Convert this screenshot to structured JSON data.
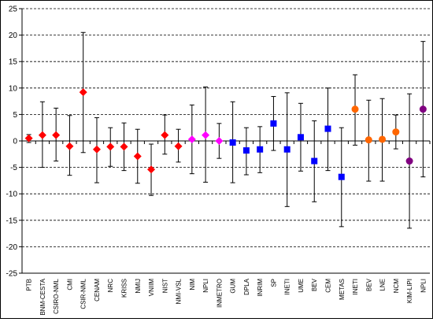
{
  "chart_data": {
    "type": "scatter",
    "categories": [
      "PTB",
      "BNM-CESTA",
      "CSIRO-NML",
      "CMI",
      "CSIR-NML",
      "CENAM",
      "NRC",
      "KRISS",
      "NMIJ",
      "VNIIM",
      "NIST",
      "NMI-VSL",
      "NIM",
      "NPLI",
      "INMETRO",
      "GUM",
      "DPLA",
      "INRIM",
      "SP",
      "INETI",
      "UME",
      "BEV",
      "CEM",
      "METAS",
      "INETI",
      "BEV",
      "LNE",
      "NCM",
      "KIM-LIPI",
      "NPLI"
    ],
    "values": [
      0.5,
      1.1,
      1.1,
      -1.0,
      9.2,
      -1.6,
      -1.1,
      -1.1,
      -2.9,
      -5.4,
      1.1,
      -1.0,
      0.3,
      1.1,
      0.0,
      -0.3,
      -1.8,
      -1.6,
      3.3,
      -1.6,
      0.7,
      -3.8,
      2.3,
      -6.8,
      6.0,
      0.2,
      0.3,
      1.7,
      -3.8,
      6.0
    ],
    "err_low": [
      -0.3,
      -5.0,
      -3.8,
      -6.5,
      -2.2,
      -7.9,
      -4.8,
      -5.6,
      -8.0,
      -10.3,
      -2.5,
      -4.0,
      -6.2,
      -7.8,
      -3.3,
      -7.9,
      -6.4,
      -6.0,
      -1.8,
      -12.4,
      -5.7,
      -11.5,
      -5.6,
      -16.2,
      -0.8,
      -7.6,
      -7.6,
      -1.5,
      -16.5,
      -6.8
    ],
    "err_high": [
      1.2,
      7.4,
      6.2,
      4.8,
      20.5,
      4.4,
      2.5,
      3.4,
      2.2,
      -0.6,
      4.9,
      2.2,
      6.8,
      10.2,
      3.3,
      7.4,
      2.5,
      2.7,
      8.4,
      9.1,
      7.1,
      3.8,
      10.0,
      2.5,
      12.5,
      7.7,
      8.0,
      4.9,
      8.9,
      18.8
    ],
    "groups": [
      {
        "from": 0,
        "to": 11,
        "color": "#ff0000",
        "marker": "diamond"
      },
      {
        "from": 12,
        "to": 14,
        "color": "#ff00ff",
        "marker": "diamond"
      },
      {
        "from": 15,
        "to": 23,
        "color": "#0000ff",
        "marker": "square"
      },
      {
        "from": 24,
        "to": 27,
        "color": "#ff6600",
        "marker": "circle"
      },
      {
        "from": 28,
        "to": 29,
        "color": "#800080",
        "marker": "circle"
      }
    ],
    "ylim": [
      -25,
      25
    ],
    "yticks": [
      "-25",
      "-20",
      "-15",
      "-10",
      "-5",
      "0",
      "5",
      "10",
      "15",
      "20",
      "25"
    ],
    "grid": true,
    "title": "",
    "xlabel": "",
    "ylabel": ""
  }
}
